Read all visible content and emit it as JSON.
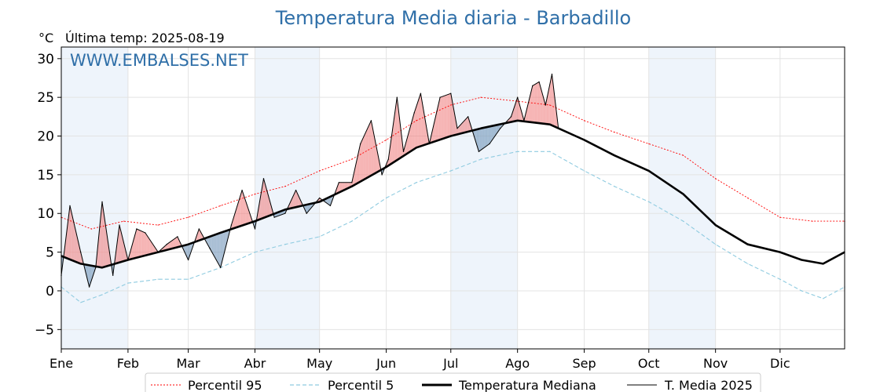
{
  "header": {
    "title": "Temperatura Media diaria - Barbadillo",
    "unit": "°C",
    "last_temp": "Última temp: 2025-08-19",
    "watermark": "WWW.EMBALSES.NET"
  },
  "chart_data": {
    "type": "line",
    "x_unit": "day of year",
    "xlim": [
      1,
      365
    ],
    "ylim": [
      -7.5,
      31.5
    ],
    "yticks": [
      -5,
      0,
      5,
      10,
      15,
      20,
      25,
      30
    ],
    "ytick_labels": [
      "−5",
      "0",
      "5",
      "10",
      "15",
      "20",
      "25",
      "30"
    ],
    "months": [
      "Ene",
      "Feb",
      "Mar",
      "Abr",
      "May",
      "Jun",
      "Jul",
      "Ago",
      "Sep",
      "Oct",
      "Nov",
      "Dic"
    ],
    "month_start_days": [
      1,
      32,
      60,
      91,
      121,
      152,
      182,
      213,
      244,
      274,
      305,
      335
    ],
    "grid": true,
    "shaded_months": [
      "Ene",
      "Abr",
      "Jul",
      "Oct"
    ],
    "legend_position": "bottom",
    "series": [
      {
        "name": "Percentil 95",
        "color": "#ff0000",
        "style": "dotted",
        "x": [
          1,
          15,
          30,
          46,
          60,
          75,
          91,
          105,
          121,
          136,
          152,
          166,
          182,
          196,
          213,
          228,
          244,
          258,
          274,
          290,
          305,
          320,
          335,
          350,
          365
        ],
        "y": [
          9.5,
          8.0,
          9.0,
          8.5,
          9.5,
          11.0,
          12.5,
          13.5,
          15.5,
          17.0,
          19.5,
          22.0,
          24.0,
          25.0,
          24.5,
          24.0,
          22.0,
          20.5,
          19.0,
          17.5,
          14.5,
          12.0,
          9.5,
          9.0,
          9.0
        ]
      },
      {
        "name": "Percentil 5",
        "color": "#8fcbe0",
        "style": "dashed",
        "x": [
          1,
          10,
          20,
          32,
          46,
          60,
          75,
          91,
          105,
          121,
          136,
          152,
          166,
          182,
          196,
          213,
          228,
          244,
          258,
          274,
          290,
          305,
          320,
          335,
          345,
          355,
          365
        ],
        "y": [
          0.5,
          -1.5,
          -0.5,
          1.0,
          1.5,
          1.5,
          3.0,
          5.0,
          6.0,
          7.0,
          9.0,
          12.0,
          14.0,
          15.5,
          17.0,
          18.0,
          18.0,
          15.5,
          13.5,
          11.5,
          9.0,
          6.0,
          3.5,
          1.5,
          0.0,
          -1.0,
          0.5
        ]
      },
      {
        "name": "Temperatura Mediana",
        "color": "#000000",
        "style": "solid-thick",
        "x": [
          1,
          10,
          20,
          32,
          46,
          60,
          75,
          91,
          105,
          121,
          136,
          152,
          166,
          182,
          196,
          213,
          228,
          244,
          258,
          274,
          290,
          305,
          320,
          335,
          345,
          355,
          365
        ],
        "y": [
          4.5,
          3.5,
          3.0,
          4.0,
          5.0,
          6.0,
          7.5,
          9.0,
          10.5,
          11.5,
          13.5,
          16.0,
          18.5,
          20.0,
          21.0,
          22.0,
          21.5,
          19.5,
          17.5,
          15.5,
          12.5,
          8.5,
          6.0,
          5.0,
          4.0,
          3.5,
          5.0
        ]
      },
      {
        "name": "T. Media 2025",
        "color": "#000000",
        "style": "solid-thin",
        "x": [
          1,
          5,
          10,
          14,
          17,
          20,
          25,
          28,
          32,
          36,
          40,
          46,
          50,
          55,
          60,
          65,
          70,
          75,
          80,
          85,
          91,
          95,
          100,
          105,
          110,
          115,
          121,
          126,
          130,
          136,
          140,
          145,
          150,
          153,
          157,
          160,
          165,
          168,
          172,
          177,
          182,
          185,
          190,
          195,
          200,
          205,
          210,
          213,
          216,
          220,
          223,
          226,
          229,
          232
        ],
        "y": [
          2.0,
          11.0,
          5.0,
          0.5,
          3.0,
          11.5,
          2.0,
          8.5,
          4.0,
          8.0,
          7.5,
          5.0,
          6.0,
          7.0,
          4.0,
          8.0,
          5.5,
          3.0,
          8.5,
          13.0,
          8.0,
          14.5,
          9.5,
          10.0,
          13.0,
          10.0,
          12.0,
          11.0,
          14.0,
          14.0,
          19.0,
          22.0,
          15.0,
          17.0,
          25.0,
          18.0,
          23.0,
          25.5,
          19.0,
          25.0,
          25.5,
          21.0,
          22.5,
          18.0,
          19.0,
          21.0,
          22.5,
          25.0,
          22.0,
          26.5,
          27.0,
          24.0,
          28.0,
          21.0
        ]
      }
    ]
  },
  "legend": {
    "items": [
      {
        "label": "Percentil 95"
      },
      {
        "label": "Percentil 5"
      },
      {
        "label": "Temperatura Mediana"
      },
      {
        "label": "T. Media 2025"
      }
    ]
  },
  "colors": {
    "above_fill": "#f08080",
    "below_fill": "#6e93b8",
    "shade": "#eef4fb",
    "title": "#2f6fa8"
  }
}
